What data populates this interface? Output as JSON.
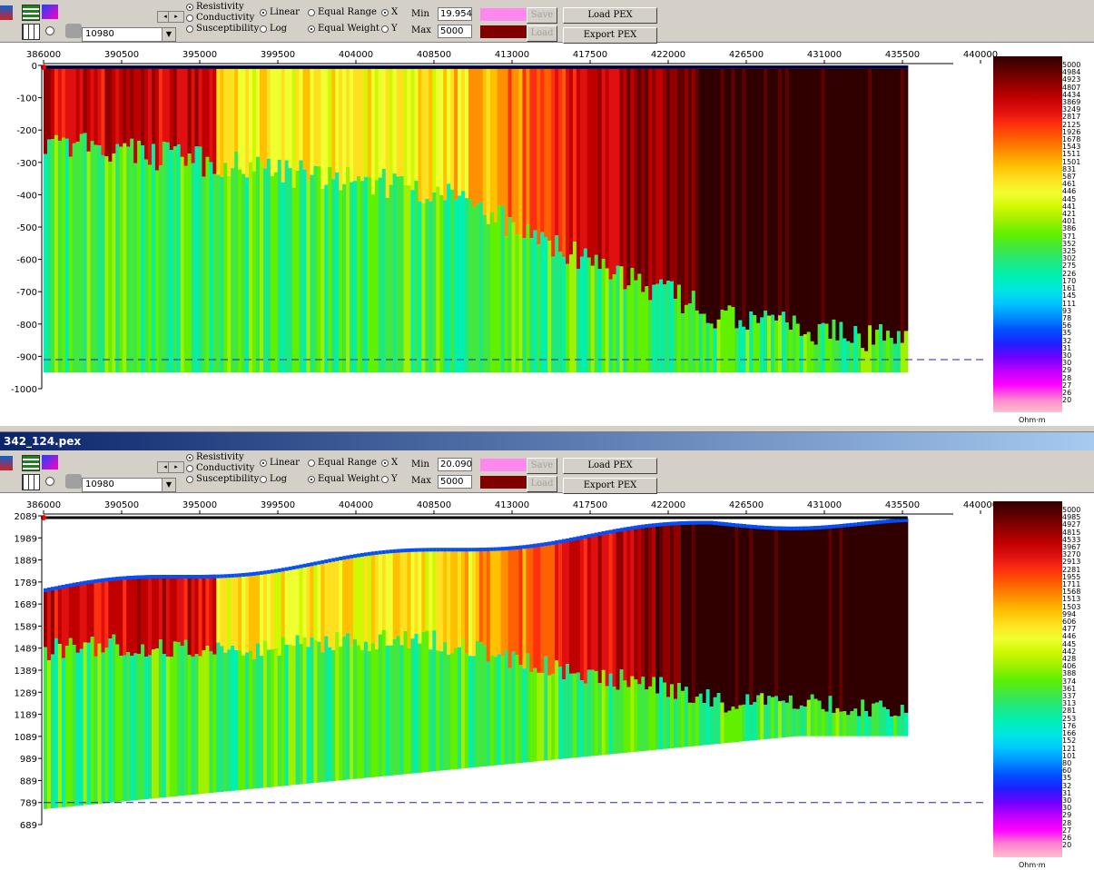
{
  "colors": {
    "ramp": [
      "#ffc0cb",
      "#ff80d0",
      "#ff00ff",
      "#c000ff",
      "#7000ff",
      "#2020ff",
      "#0050ff",
      "#0090ff",
      "#00c8ff",
      "#00e8e0",
      "#00f0b0",
      "#20e880",
      "#40e840",
      "#60f000",
      "#a0f000",
      "#d0f800",
      "#f0ff30",
      "#ffe020",
      "#ffc000",
      "#ff9000",
      "#ff6000",
      "#ff3010",
      "#e01010",
      "#c00000",
      "#900000",
      "#600000",
      "#300000"
    ]
  },
  "window2": {
    "title": "342_124.pex"
  },
  "panels": [
    {
      "toolbar": {
        "mode": [
          "Resistivity",
          "Conductivity",
          "Susceptibility"
        ],
        "scale": [
          "Linear",
          "Log"
        ],
        "weighting": [
          "Equal Range",
          "Equal Weight"
        ],
        "axis": [
          "X",
          "Y"
        ],
        "min_label": "Min",
        "max_label": "Max",
        "min_value": "19.954",
        "max_value": "5000",
        "combo_value": "10980",
        "min_color": "#ff88ee",
        "max_color": "#800000",
        "save_label": "Save",
        "load_label": "Load",
        "load_pex": "Load PEX",
        "export_pex": "Export PEX"
      },
      "chart_data": {
        "type": "heatmap",
        "x_ticks": [
          "386000",
          "390500",
          "395000",
          "399500",
          "404000",
          "408500",
          "413000",
          "417500",
          "422000",
          "426500",
          "431000",
          "435500",
          "440000"
        ],
        "y_ticks": [
          "0",
          "-100",
          "-200",
          "-300",
          "-400",
          "-500",
          "-600",
          "-700",
          "-800",
          "-900",
          "-1000"
        ],
        "xlim": [
          386000,
          440000
        ],
        "ylim": [
          -1000,
          0
        ],
        "reference_line": -910,
        "legend_values": [
          "5000",
          "4984",
          "4923",
          "4807",
          "4434",
          "3869",
          "3249",
          "2817",
          "2125",
          "1926",
          "1678",
          "1543",
          "1511",
          "1501",
          "831",
          "587",
          "461",
          "446",
          "445",
          "441",
          "421",
          "401",
          "386",
          "371",
          "352",
          "325",
          "302",
          "275",
          "226",
          "170",
          "161",
          "145",
          "111",
          "93",
          "78",
          "56",
          "35",
          "32",
          "31",
          "30",
          "30",
          "29",
          "28",
          "27",
          "26",
          "20"
        ],
        "unit": "Ohm·m"
      }
    },
    {
      "toolbar": {
        "mode": [
          "Resistivity",
          "Conductivity",
          "Susceptibility"
        ],
        "scale": [
          "Linear",
          "Log"
        ],
        "weighting": [
          "Equal Range",
          "Equal Weight"
        ],
        "axis": [
          "X",
          "Y"
        ],
        "min_label": "Min",
        "max_label": "Max",
        "min_value": "20.090",
        "max_value": "5000",
        "combo_value": "10980",
        "min_color": "#ff88ee",
        "max_color": "#800000",
        "save_label": "Save",
        "load_label": "Load",
        "load_pex": "Load PEX",
        "export_pex": "Export PEX"
      },
      "chart_data": {
        "type": "heatmap",
        "x_ticks": [
          "386000",
          "390500",
          "395000",
          "399500",
          "404000",
          "408500",
          "413000",
          "417500",
          "422000",
          "426500",
          "431000",
          "435500",
          "440000"
        ],
        "y_ticks": [
          "2089",
          "1989",
          "1889",
          "1789",
          "1689",
          "1589",
          "1489",
          "1389",
          "1289",
          "1189",
          "1089",
          "989",
          "889",
          "789",
          "689"
        ],
        "xlim": [
          386000,
          440000
        ],
        "ylim": [
          689,
          2089
        ],
        "reference_line": 789,
        "legend_values": [
          "5000",
          "4985",
          "4927",
          "4815",
          "4533",
          "3967",
          "3270",
          "2913",
          "2281",
          "1955",
          "1711",
          "1568",
          "1513",
          "1503",
          "994",
          "606",
          "477",
          "446",
          "445",
          "442",
          "428",
          "406",
          "388",
          "374",
          "361",
          "337",
          "313",
          "281",
          "253",
          "176",
          "166",
          "152",
          "121",
          "101",
          "80",
          "60",
          "35",
          "32",
          "31",
          "30",
          "30",
          "29",
          "28",
          "27",
          "26",
          "20"
        ],
        "unit": "Ohm·m"
      }
    }
  ]
}
